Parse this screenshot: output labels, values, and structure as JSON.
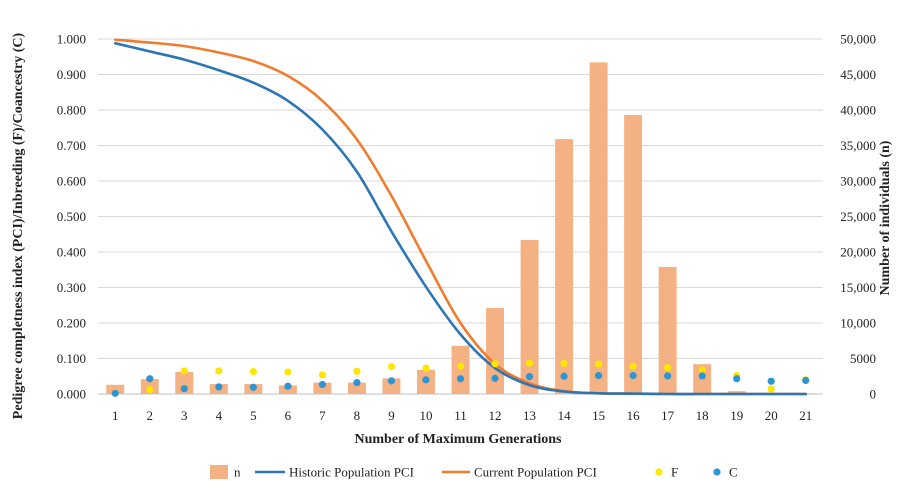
{
  "chart_data": {
    "type": "bar+line+scatter",
    "xlabel": "Number of Maximum Generations",
    "ylabel_left": "Pedigree completness index (PCI)/Inbreeding (F)/Coancestry (C)",
    "ylabel_right": "Number of individuals (n)",
    "ylim_left": [
      0,
      1
    ],
    "ylim_right": [
      0,
      50000
    ],
    "y_left_ticks": [
      "0.000",
      "0.100",
      "0.200",
      "0.300",
      "0.400",
      "0.500",
      "0.600",
      "0.700",
      "0.800",
      "0.900",
      "1.000"
    ],
    "y_right_ticks": [
      "0",
      "5000",
      "10,000",
      "15,000",
      "20,000",
      "25,000",
      "30,000",
      "35,000",
      "40,000",
      "45,000",
      "50,000"
    ],
    "categories": [
      "1",
      "2",
      "3",
      "4",
      "5",
      "6",
      "7",
      "8",
      "9",
      "10",
      "11",
      "12",
      "13",
      "14",
      "15",
      "16",
      "17",
      "18",
      "19",
      "20",
      "21"
    ],
    "grid": true,
    "legend_position": "bottom",
    "series": [
      {
        "name": "n",
        "kind": "bar",
        "axis": "right",
        "color": "#f4b183",
        "values": [
          1300,
          2100,
          3100,
          1400,
          1400,
          1200,
          1600,
          1600,
          2200,
          3400,
          6800,
          12100,
          21700,
          35900,
          46700,
          39300,
          17900,
          4200,
          400,
          100,
          100
        ]
      },
      {
        "name": "Historic Population PCI",
        "kind": "line",
        "axis": "left",
        "color": "#2e75b6",
        "values": [
          0.988,
          0.965,
          0.942,
          0.912,
          0.877,
          0.826,
          0.745,
          0.626,
          0.458,
          0.302,
          0.168,
          0.073,
          0.025,
          0.007,
          0.002,
          0.001,
          0.0,
          0.0,
          0.0,
          0.0,
          0.0
        ]
      },
      {
        "name": "Current Population PCI",
        "kind": "line",
        "axis": "left",
        "color": "#f07c2e",
        "values": [
          0.998,
          0.99,
          0.98,
          0.962,
          0.938,
          0.896,
          0.826,
          0.717,
          0.558,
          0.375,
          0.2,
          0.085,
          0.03,
          0.008,
          0.002,
          0.001,
          0.0,
          0.0,
          0.0,
          0.0,
          0.0
        ]
      },
      {
        "name": "F",
        "kind": "scatter",
        "axis": "left",
        "color": "#ffe600",
        "values": [
          0.003,
          0.012,
          0.065,
          0.065,
          0.063,
          0.062,
          0.054,
          0.064,
          0.077,
          0.073,
          0.079,
          0.085,
          0.087,
          0.086,
          0.084,
          0.078,
          0.074,
          0.068,
          0.052,
          0.014,
          0.04
        ]
      },
      {
        "name": "C",
        "kind": "scatter",
        "axis": "left",
        "color": "#2e95d3",
        "values": [
          0.002,
          0.043,
          0.015,
          0.02,
          0.019,
          0.022,
          0.027,
          0.032,
          0.037,
          0.04,
          0.043,
          0.044,
          0.049,
          0.05,
          0.052,
          0.052,
          0.051,
          0.051,
          0.043,
          0.036,
          0.038
        ]
      }
    ]
  }
}
